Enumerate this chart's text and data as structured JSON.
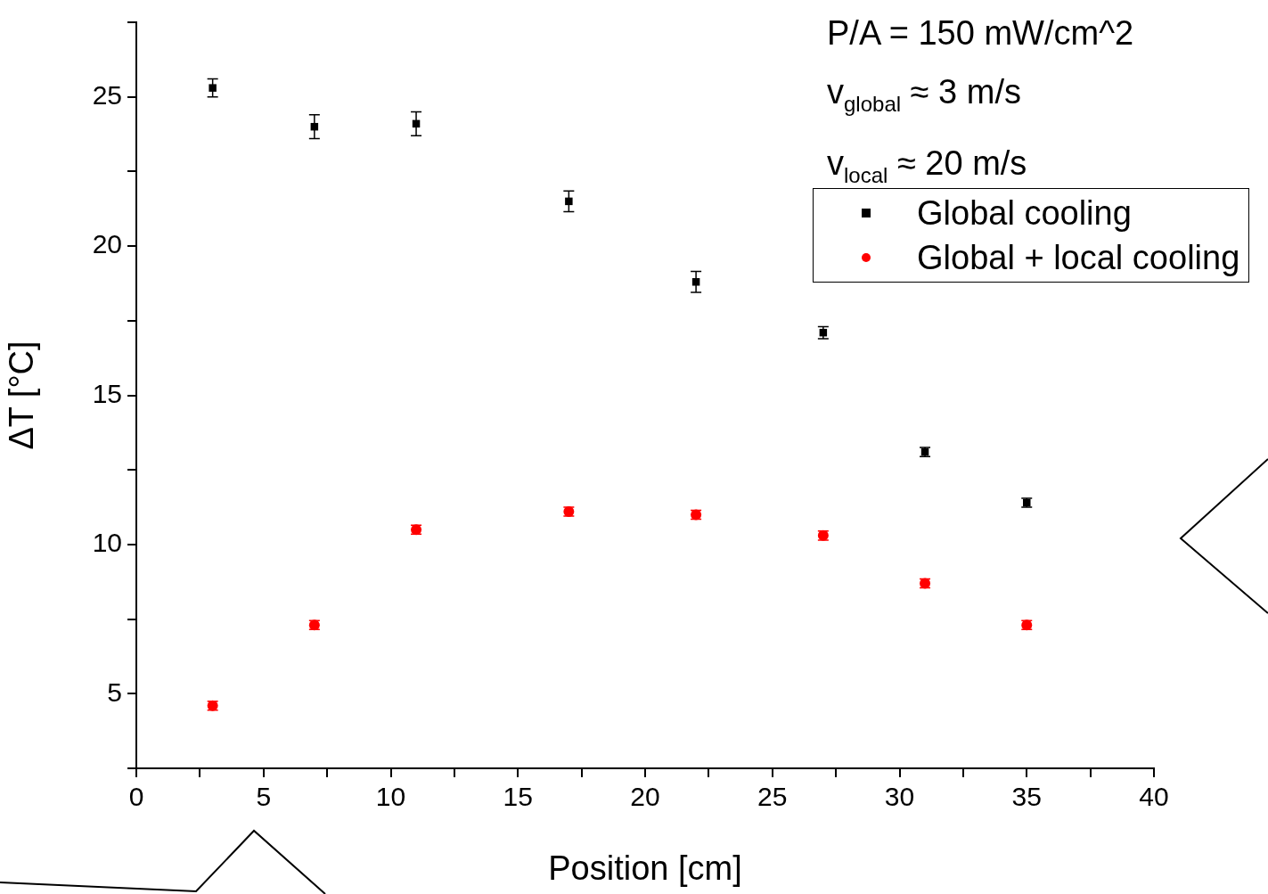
{
  "chart_data": {
    "type": "scatter",
    "xlabel": "Position [cm]",
    "ylabel": "ΔT [°C]",
    "annotations": [
      "P/A = 150 mW/cm^2",
      "v$_{global}$ ≈ 3 m/s",
      "v$_{local}$ ≈ 20 m/s"
    ],
    "xlim": [
      0,
      40
    ],
    "xticks": [
      0,
      {
        "value": 2.5,
        "label": null
      },
      5,
      {
        "value": 7.5,
        "label": null
      },
      10,
      {
        "value": 12.5,
        "label": null
      },
      15,
      {
        "value": 17.5,
        "label": null
      },
      20,
      {
        "value": 22.5,
        "label": null
      },
      25,
      {
        "value": 27.5,
        "label": null
      },
      30,
      {
        "value": 32.5,
        "label": null
      },
      35,
      {
        "value": 37.5,
        "label": null
      },
      40
    ],
    "ylim": [
      2.5,
      27.5
    ],
    "yticks": [
      {
        "value": 2.5,
        "label": null
      },
      5,
      {
        "value": 7.5,
        "label": null
      },
      10,
      {
        "value": 12.5,
        "label": null
      },
      15,
      {
        "value": 17.5,
        "label": null
      },
      20,
      {
        "value": 22.5,
        "label": null
      },
      25,
      {
        "value": 27.5,
        "label": null
      }
    ],
    "grid": false,
    "legend": "top right",
    "series": [
      {
        "name": "Global cooling",
        "color": "#000000",
        "marker": "square",
        "x": [
          3,
          7,
          11,
          17,
          22,
          27,
          31,
          35
        ],
        "values": [
          25.3,
          24.0,
          24.1,
          21.5,
          18.8,
          17.1,
          13.1,
          11.4
        ],
        "errors": [
          0.3,
          0.4,
          0.4,
          0.35,
          0.35,
          0.2,
          0.15,
          0.15
        ]
      },
      {
        "name": "Global + local cooling",
        "color": "#ff0000",
        "marker": "circle",
        "x": [
          3,
          7,
          11,
          17,
          22,
          27,
          31,
          35
        ],
        "values": [
          4.6,
          7.3,
          10.5,
          11.1,
          11.0,
          10.3,
          8.7,
          7.3
        ],
        "errors": [
          0.15,
          0.15,
          0.15,
          0.15,
          0.15,
          0.15,
          0.15,
          0.15
        ]
      }
    ]
  }
}
